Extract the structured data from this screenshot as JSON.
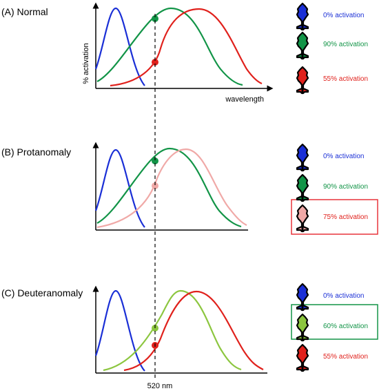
{
  "dashed_line_label": "520 nm",
  "axis_labels": {
    "y": "% activation",
    "x": "wavelength"
  },
  "colors": {
    "blue": "#1a2fd6",
    "green": "#129447",
    "red": "#e0211c",
    "pink": "#f0a9a7",
    "light_green": "#8cc63f",
    "pink_box": "#e8333a",
    "green_box": "#129447"
  },
  "panels": [
    {
      "title": "(A) Normal",
      "cones": [
        {
          "label": "0% activation",
          "color": "#1a2fd6"
        },
        {
          "label": "90% activation",
          "color": "#129447"
        },
        {
          "label": "55% activation",
          "color": "#e0211c"
        }
      ]
    },
    {
      "title": "(B) Protanomaly",
      "cones": [
        {
          "label": "0% activation",
          "color": "#1a2fd6"
        },
        {
          "label": "90% activation",
          "color": "#129447"
        },
        {
          "label": "75% activation",
          "color": "#e0211c",
          "cone_fill": "#f0a9a7"
        }
      ]
    },
    {
      "title": "(C) Deuteranomaly",
      "cones": [
        {
          "label": "0% activation",
          "color": "#1a2fd6"
        },
        {
          "label": "60% activation",
          "color": "#129447",
          "cone_fill": "#8cc63f"
        },
        {
          "label": "55% activation",
          "color": "#e0211c"
        }
      ]
    }
  ]
}
